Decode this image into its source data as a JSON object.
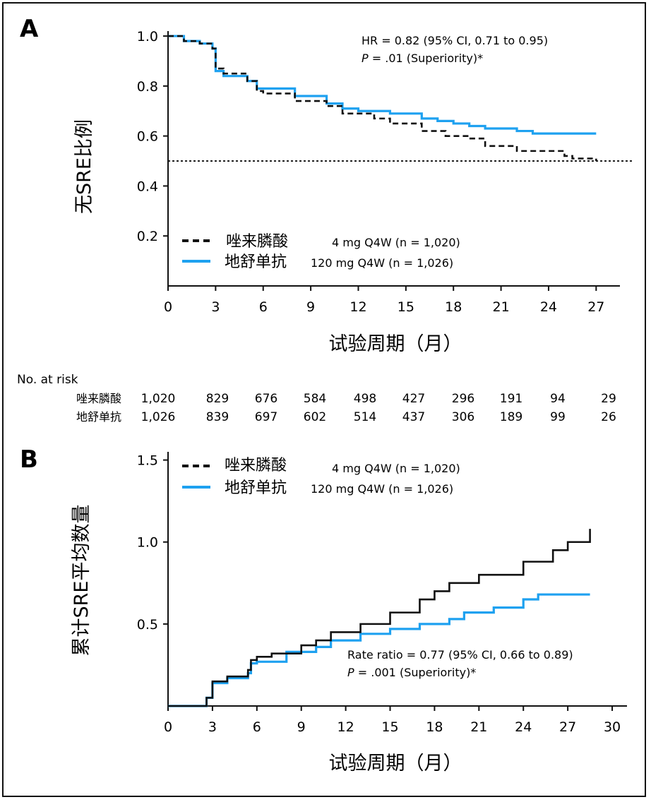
{
  "colors": {
    "zol": "#111111",
    "den": "#1ea1f0",
    "ref": "#111111"
  },
  "panel_a": {
    "letter": "A",
    "annotation_line1": "HR = 0.82 (95% CI, 0.71 to 0.95)",
    "annotation_p": "P",
    "annotation_line2_rest": " = .01 (Superiority)*",
    "legend": [
      {
        "drug": "唑来膦酸",
        "dose": "4 mg Q4W (n = 1,020)"
      },
      {
        "drug": "地舒单抗",
        "dose": "120 mg Q4W (n = 1,026)"
      }
    ]
  },
  "at_risk": {
    "title": "No. at risk",
    "rows": [
      {
        "label": "唑来膦酸",
        "values": [
          "1,020",
          "829",
          "676",
          "584",
          "498",
          "427",
          "296",
          "191",
          "94",
          "29"
        ]
      },
      {
        "label": "地舒单抗",
        "values": [
          "1,026",
          "839",
          "697",
          "602",
          "514",
          "437",
          "306",
          "189",
          "99",
          "26"
        ]
      }
    ]
  },
  "panel_b": {
    "letter": "B",
    "annotation_line1": "Rate ratio = 0.77 (95% CI, 0.66 to 0.89)",
    "annotation_p": "P",
    "annotation_line2_rest": " = .001 (Superiority)*",
    "legend": [
      {
        "drug": "唑来膦酸",
        "dose": "4 mg Q4W (n = 1,020)"
      },
      {
        "drug": "地舒单抗",
        "dose": "120 mg Q4W (n = 1,026)"
      }
    ]
  },
  "chart_data": [
    {
      "type": "line",
      "title": "",
      "xlabel": "试验周期（月）",
      "ylabel": "无SRE比例",
      "xlim": [
        0,
        28.5
      ],
      "ylim": [
        0.0,
        1.02
      ],
      "x_ticks": [
        0,
        3,
        6,
        9,
        12,
        15,
        18,
        21,
        24,
        27
      ],
      "x_tick_labels": [
        "0",
        "3",
        "6",
        "9",
        "12",
        "15",
        "18",
        "21",
        "24",
        "27"
      ],
      "y_ticks": [
        0.2,
        0.4,
        0.6,
        0.8,
        1.0
      ],
      "y_tick_labels": [
        "0.2",
        "0.4",
        "0.6",
        "0.8",
        "1.0"
      ],
      "reference_line_y": 0.5,
      "series": [
        {
          "name": "唑来膦酸 4 mg Q4W (n = 1,020)",
          "style": "dashed",
          "x": [
            0,
            1,
            2,
            2.8,
            3,
            3.5,
            5,
            5.6,
            6,
            8,
            10,
            11,
            13,
            14,
            16,
            17.5,
            19,
            20,
            22,
            24,
            25,
            25.5,
            27
          ],
          "y": [
            1.0,
            0.98,
            0.97,
            0.95,
            0.87,
            0.85,
            0.82,
            0.78,
            0.77,
            0.74,
            0.72,
            0.69,
            0.67,
            0.65,
            0.62,
            0.6,
            0.59,
            0.56,
            0.54,
            0.54,
            0.52,
            0.51,
            0.5
          ]
        },
        {
          "name": "地舒单抗 120 mg Q4W (n = 1,026)",
          "style": "solid",
          "x": [
            0,
            1,
            2,
            2.8,
            3,
            3.5,
            5,
            5.6,
            6,
            8,
            10,
            11,
            12,
            14,
            16,
            17,
            18,
            19,
            20,
            22,
            23,
            23.5,
            24,
            27
          ],
          "y": [
            1.0,
            0.98,
            0.97,
            0.95,
            0.86,
            0.84,
            0.82,
            0.79,
            0.79,
            0.76,
            0.73,
            0.71,
            0.7,
            0.69,
            0.67,
            0.66,
            0.65,
            0.64,
            0.63,
            0.62,
            0.61,
            0.61,
            0.61,
            0.61
          ]
        }
      ]
    },
    {
      "type": "line",
      "title": "",
      "xlabel": "试验周期（月）",
      "ylabel": "累计SRE平均数量",
      "xlim": [
        0,
        31
      ],
      "ylim": [
        0,
        1.55
      ],
      "x_ticks": [
        0,
        3,
        6,
        9,
        12,
        15,
        18,
        21,
        24,
        27,
        30
      ],
      "x_tick_labels": [
        "0",
        "3",
        "6",
        "9",
        "12",
        "15",
        "18",
        "21",
        "24",
        "27",
        "30"
      ],
      "y_ticks": [
        0.5,
        1.0,
        1.5
      ],
      "y_tick_labels": [
        "0.5",
        "1.0",
        "1.5"
      ],
      "series": [
        {
          "name": "唑来膦酸 4 mg Q4W (n = 1,020)",
          "style": "solid",
          "x": [
            0,
            2.6,
            3,
            4,
            5.4,
            5.6,
            6,
            7,
            9,
            10,
            11,
            13,
            15,
            17,
            18,
            19,
            21,
            24,
            26,
            27,
            28.5,
            28.5
          ],
          "y": [
            0,
            0.05,
            0.15,
            0.18,
            0.22,
            0.28,
            0.3,
            0.32,
            0.37,
            0.4,
            0.45,
            0.5,
            0.57,
            0.65,
            0.7,
            0.75,
            0.8,
            0.88,
            0.95,
            1.0,
            1.02,
            1.08
          ]
        },
        {
          "name": "地舒单抗 120 mg Q4W (n = 1,026)",
          "style": "solid",
          "x": [
            0,
            2.6,
            3,
            4,
            5.4,
            5.6,
            6,
            8,
            10,
            11,
            13,
            15,
            17,
            19,
            20,
            22,
            24,
            25,
            28.5
          ],
          "y": [
            0,
            0.05,
            0.14,
            0.17,
            0.2,
            0.26,
            0.27,
            0.33,
            0.36,
            0.4,
            0.44,
            0.47,
            0.5,
            0.53,
            0.57,
            0.6,
            0.65,
            0.68,
            0.68
          ]
        }
      ]
    }
  ]
}
